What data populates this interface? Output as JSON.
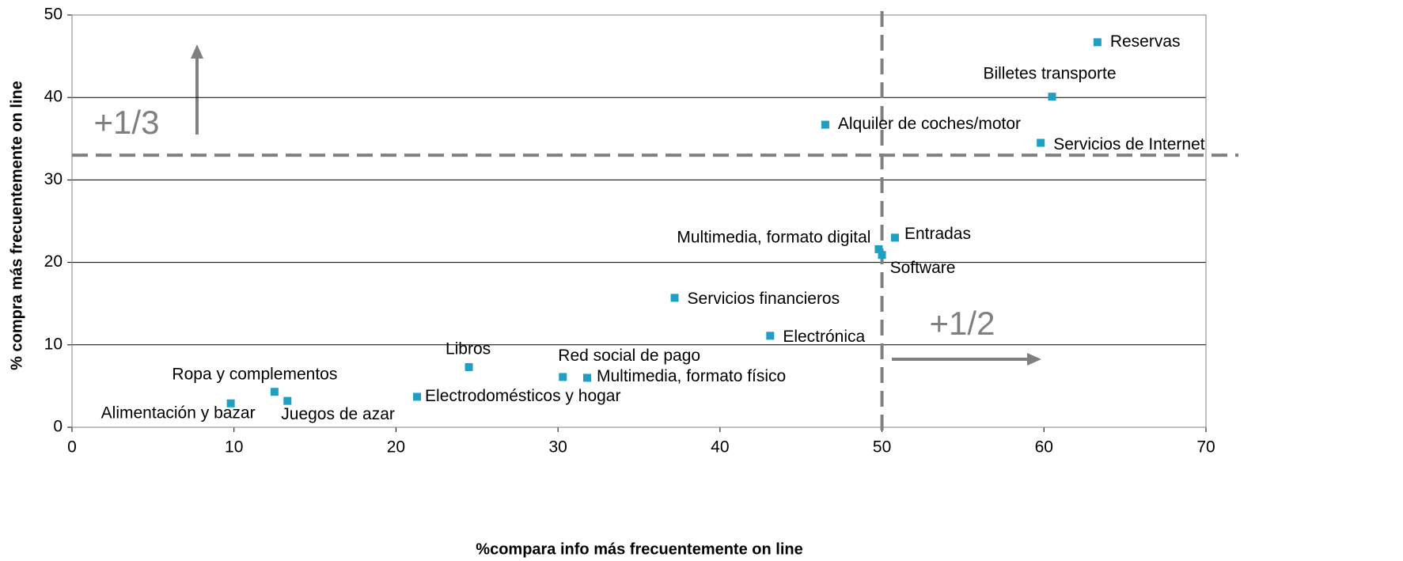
{
  "chart_data": {
    "type": "scatter",
    "x_label": "%compara info más frecuentemente on line",
    "y_label": "% compra más frecuentemente on line",
    "categories": [
      "Reservas",
      "Billetes transporte",
      "Alquiler de coches/motor",
      "Servicios de Internet",
      "Entradas",
      "Multimedia, formato digital",
      "Software",
      "Servicios financieros",
      "Electrónica",
      "Libros",
      "Red social de pago",
      "Multimedia, formato físico",
      "Ropa y complementos",
      "Juegos de azar",
      "Electrodomésticos y hogar",
      "Alimentación y bazar"
    ],
    "x": [
      63.3,
      60.5,
      46.5,
      59.8,
      50.8,
      49.8,
      50.0,
      37.2,
      43.1,
      24.5,
      30.3,
      31.8,
      12.5,
      13.3,
      21.3,
      9.8
    ],
    "values": [
      46.7,
      40.1,
      36.7,
      34.5,
      23.0,
      21.6,
      20.9,
      15.7,
      11.1,
      7.3,
      6.1,
      6.0,
      4.3,
      3.2,
      3.7,
      2.9
    ],
    "color": "#1f9fc2",
    "xlim": [
      0,
      70
    ],
    "xticks": [
      0,
      10,
      20,
      30,
      40,
      50,
      60,
      70
    ],
    "ylim": [
      0,
      50
    ],
    "yticks": [
      0,
      10,
      20,
      30,
      40,
      50
    ],
    "grid": true,
    "reference_lines": {
      "x": 50,
      "y": 33
    },
    "annotations": [
      "+1/3",
      "+1/2"
    ]
  }
}
